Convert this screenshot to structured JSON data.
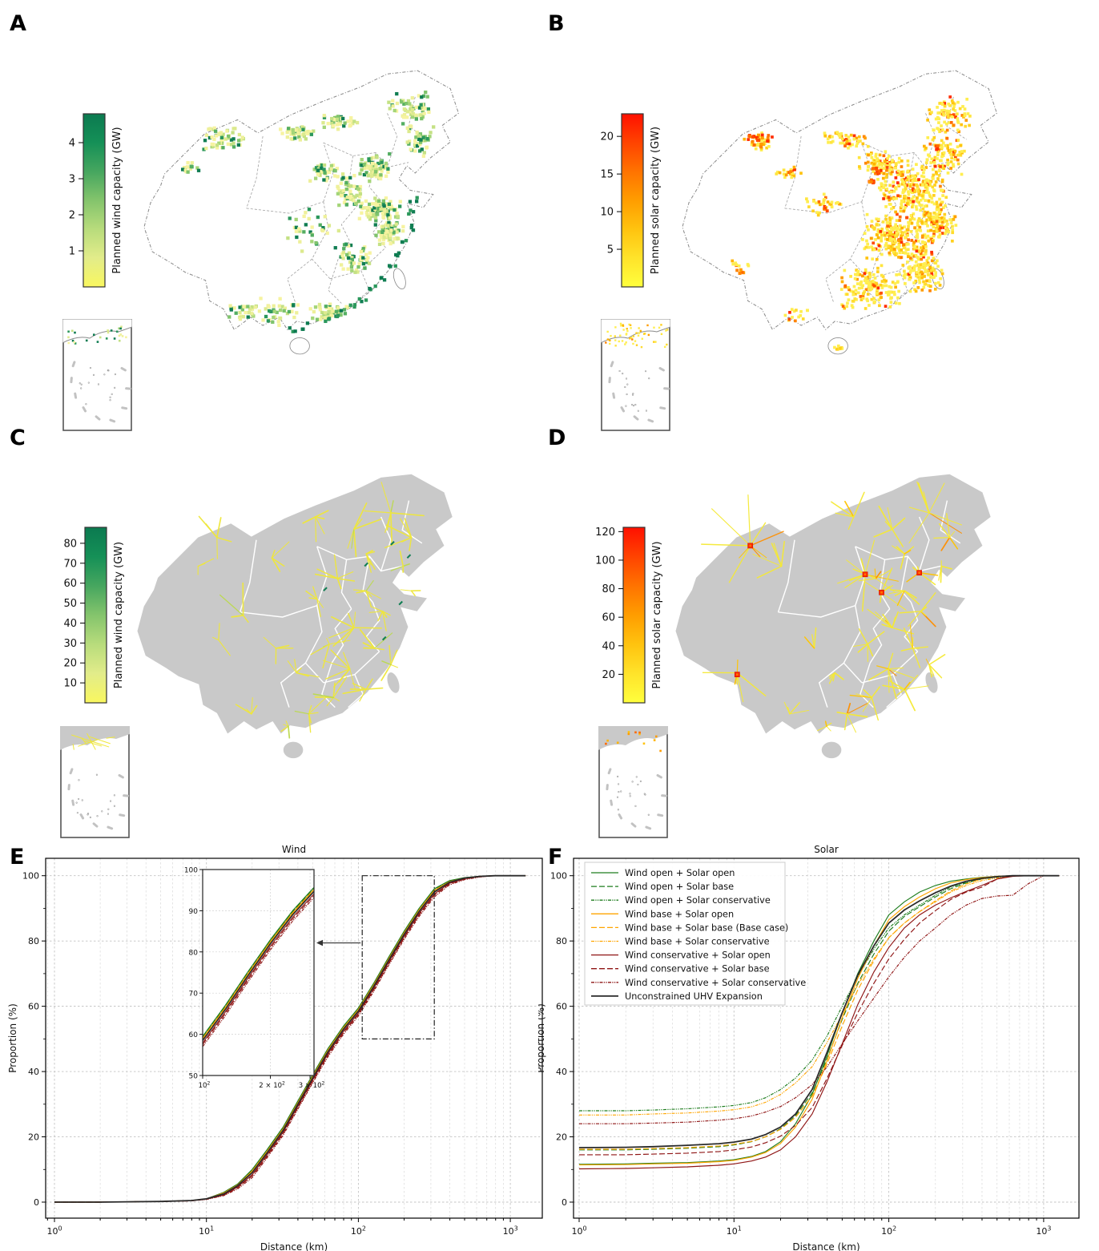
{
  "figure": {
    "panel_labels": [
      "A",
      "B",
      "C",
      "D",
      "E",
      "F"
    ]
  },
  "colorbars": {
    "panel_a": {
      "label": "Planned wind capacity (GW)",
      "vmin": 0,
      "vmax": 4.8,
      "ticks": [
        1,
        2,
        3,
        4
      ],
      "gradient": [
        "#f9f75f",
        "#e2ec8a",
        "#b8dc7c",
        "#84c46c",
        "#46a65f",
        "#159057",
        "#0b7a50"
      ]
    },
    "panel_b": {
      "label": "Planned solar capacity (GW)",
      "vmin": 0,
      "vmax": 23,
      "ticks": [
        5,
        10,
        15,
        20
      ],
      "gradient": [
        "#ffff3d",
        "#ffe32a",
        "#ffc30f",
        "#ff9d00",
        "#ff7300",
        "#ff4300",
        "#ff1000"
      ]
    },
    "panel_c": {
      "label": "Planned wind capacity (GW)",
      "vmin": 0,
      "vmax": 88,
      "ticks": [
        10,
        20,
        30,
        40,
        50,
        60,
        70,
        80
      ],
      "gradient": [
        "#f9f75f",
        "#e2ec8a",
        "#b8dc7c",
        "#84c46c",
        "#46a65f",
        "#159057",
        "#0b7a50"
      ]
    },
    "panel_d": {
      "label": "Planned solar capacity (GW)",
      "vmin": 0,
      "vmax": 123,
      "ticks": [
        20,
        40,
        60,
        80,
        100,
        120
      ],
      "gradient": [
        "#ffff3d",
        "#ffe32a",
        "#ffc30f",
        "#ff9d00",
        "#ff7300",
        "#ff4300",
        "#ff1000"
      ]
    }
  },
  "chart_data": [
    {
      "id": "map_A",
      "type": "map",
      "panel": "A",
      "content": "Gridded planned wind capacity across China; dense dark-green cells along east/southeast coast, clusters in N Xinjiang, Inner Mongolia, North China Plain; South China Sea inset",
      "colorbar": "panel_a"
    },
    {
      "id": "map_B",
      "type": "map",
      "panel": "B",
      "content": "Gridded planned solar capacity across China; dense yellow cells over eastern China, orange/red hotspots in N Xinjiang, Gansu-Ningxia and Tibet; South China Sea inset",
      "colorbar": "panel_b"
    },
    {
      "id": "map_C",
      "type": "map",
      "panel": "C",
      "content": "Planned wind capacity connected by UHV expansion: gray China map with yellow radiating transmission fans and small green hubs; South China Sea inset",
      "colorbar": "panel_c"
    },
    {
      "id": "map_D",
      "type": "map",
      "panel": "D",
      "content": "Planned solar capacity connected by UHV expansion: gray China map with yellow/orange radiating fans and red hub squares in Xinjiang, Qinghai, Ningxia, Tibet; South China Sea inset",
      "colorbar": "panel_d"
    },
    {
      "id": "wind_cdf",
      "type": "line",
      "title": "Wind",
      "xlabel": "Distance (km)",
      "ylabel": "Proportion (%)",
      "xscale": "log",
      "xlim": [
        0.9,
        1650
      ],
      "ylim": [
        -4,
        105
      ],
      "yticks": [
        0,
        20,
        40,
        60,
        80,
        100
      ],
      "xticks": [
        {
          "c": 1,
          "e": "0"
        },
        {
          "c": 1,
          "e": "1"
        },
        {
          "c": 1,
          "e": "2"
        },
        {
          "c": 1,
          "e": "3"
        }
      ],
      "grid": true,
      "legend": false,
      "x": [
        1,
        2,
        3,
        5,
        8,
        10,
        13,
        16,
        20,
        25,
        32,
        40,
        50,
        63,
        80,
        100,
        126,
        158,
        200,
        251,
        316,
        398,
        501,
        631,
        794,
        1000,
        1259
      ],
      "series": [
        {
          "name": "Wind open + Solar open",
          "color": "#1e7d1e",
          "dash": "solid",
          "values": [
            0,
            0,
            0.1,
            0.2,
            0.5,
            1,
            3,
            5.5,
            10,
            16,
            23,
            31,
            39,
            47,
            54,
            59.5,
            67,
            75,
            83,
            90,
            96,
            98.5,
            99.4,
            99.8,
            100,
            100,
            100
          ]
        },
        {
          "name": "Wind open + Solar base",
          "color": "#1e7d1e",
          "dash": "dashed",
          "values": [
            0,
            0,
            0.1,
            0.2,
            0.5,
            1,
            2.9,
            5.4,
            9.8,
            15.8,
            22.8,
            30.8,
            38.8,
            46.8,
            53.8,
            59.3,
            66.8,
            74.8,
            82.8,
            89.8,
            95.8,
            98.4,
            99.4,
            99.8,
            100,
            100,
            100
          ]
        },
        {
          "name": "Wind open + Solar conservative",
          "color": "#1e7d1e",
          "dash": "dashdot",
          "values": [
            0,
            0,
            0.1,
            0.2,
            0.5,
            1,
            2.8,
            5.3,
            9.6,
            15.6,
            22.6,
            30.6,
            38.6,
            46.6,
            53.6,
            59.1,
            66.6,
            74.6,
            82.6,
            89.6,
            95.6,
            98.3,
            99.3,
            99.8,
            100,
            100,
            100
          ]
        },
        {
          "name": "Wind base + Solar open",
          "color": "#ffa500",
          "dash": "solid",
          "values": [
            0,
            0,
            0.1,
            0.2,
            0.5,
            1,
            2.8,
            5.2,
            9.5,
            15.5,
            22.5,
            30.5,
            38.5,
            46.5,
            53.5,
            59,
            66.5,
            74.5,
            82.5,
            89.5,
            95.5,
            98.2,
            99.3,
            99.8,
            100,
            100,
            100
          ]
        },
        {
          "name": "Wind base + Solar base (Base case)",
          "color": "#ffa500",
          "dash": "dashed",
          "values": [
            0,
            0,
            0.1,
            0.2,
            0.5,
            1,
            2.7,
            5.2,
            9.3,
            15.3,
            22.3,
            30.3,
            38.3,
            46.3,
            53.3,
            58.8,
            66.3,
            74.3,
            82.3,
            89.3,
            95.3,
            98.1,
            99.3,
            99.8,
            100,
            100,
            100
          ]
        },
        {
          "name": "Wind base + Solar conservative",
          "color": "#ffa500",
          "dash": "dashdot",
          "values": [
            0,
            0,
            0.1,
            0.2,
            0.5,
            1,
            2.5,
            5,
            9.1,
            15.1,
            22.1,
            30.1,
            38.1,
            46.1,
            53.1,
            58.6,
            66.1,
            74.1,
            82.1,
            89.1,
            95.1,
            98,
            99.3,
            99.8,
            100,
            100,
            100
          ]
        },
        {
          "name": "Wind conservative + Solar open",
          "color": "#8f1515",
          "dash": "solid",
          "values": [
            0,
            0,
            0.1,
            0.2,
            0.5,
            0.9,
            2.2,
            4.6,
            8.4,
            14.4,
            21.4,
            29.4,
            37.4,
            45.4,
            52.4,
            57.9,
            65.4,
            73.4,
            81.4,
            88.4,
            94.4,
            97.7,
            99.1,
            99.7,
            100,
            100,
            100
          ]
        },
        {
          "name": "Wind conservative + Solar base",
          "color": "#8f1515",
          "dash": "dashed",
          "values": [
            0,
            0,
            0.1,
            0.2,
            0.4,
            0.9,
            2.1,
            4.4,
            8,
            14,
            21,
            29,
            37,
            45,
            52,
            57.5,
            65,
            73,
            81,
            88,
            94,
            97.5,
            99,
            99.7,
            100,
            100,
            100
          ]
        },
        {
          "name": "Wind conservative + Solar conservative",
          "color": "#8f1515",
          "dash": "dashdot",
          "values": [
            0,
            0,
            0.1,
            0.2,
            0.4,
            0.8,
            2,
            4,
            7.5,
            13.5,
            20.5,
            28.5,
            36.5,
            44.5,
            51.5,
            57,
            64.5,
            72.5,
            80.5,
            87.5,
            93.5,
            97.2,
            98.8,
            99.6,
            100,
            100,
            100
          ]
        },
        {
          "name": "Unconstrained UHV Expansion",
          "color": "#2b2b2b",
          "dash": "solid",
          "values": [
            0,
            0,
            0.1,
            0.2,
            0.5,
            1,
            2.5,
            5,
            9,
            15,
            22,
            30,
            38,
            46,
            53,
            58.5,
            66,
            74,
            82,
            89,
            95,
            98,
            99.3,
            99.8,
            100,
            100,
            100
          ]
        }
      ],
      "inset": {
        "xlim": [
          100,
          320
        ],
        "ylim": [
          50,
          100
        ],
        "xticks": [
          {
            "c": 1,
            "e": "2"
          },
          {
            "c": 2,
            "e": "2"
          },
          {
            "c": 3,
            "e": "2"
          }
        ],
        "yticks": [
          50,
          60,
          70,
          80,
          90,
          100
        ],
        "zoom_rect_x": [
          106,
          316
        ],
        "zoom_rect_y": [
          50,
          100
        ]
      }
    },
    {
      "id": "solar_cdf",
      "type": "line",
      "title": "Solar",
      "xlabel": "Distance (km)",
      "ylabel": "Proportion (%)",
      "xscale": "log",
      "xlim": [
        0.9,
        1700
      ],
      "ylim": [
        -4,
        105
      ],
      "yticks": [
        0,
        20,
        40,
        60,
        80,
        100
      ],
      "xticks": [
        {
          "c": 1,
          "e": "0"
        },
        {
          "c": 1,
          "e": "1"
        },
        {
          "c": 1,
          "e": "2"
        },
        {
          "c": 1,
          "e": "3"
        }
      ],
      "grid": true,
      "legend": true,
      "legend_position": "upper left",
      "x": [
        1,
        2,
        3,
        5,
        8,
        10,
        13,
        16,
        20,
        25,
        32,
        40,
        50,
        63,
        80,
        100,
        126,
        158,
        200,
        251,
        316,
        398,
        501,
        631,
        794,
        1000,
        1259
      ],
      "series": [
        {
          "name": "Wind open + Solar open",
          "color": "#1e7d1e",
          "dash": "solid",
          "values": [
            11.6,
            11.7,
            11.9,
            12.1,
            12.6,
            13,
            14,
            15.5,
            18.5,
            24,
            33,
            45,
            58,
            70,
            80,
            88,
            92,
            95,
            97,
            98.3,
            99,
            99.5,
            99.8,
            100,
            100,
            100,
            100
          ]
        },
        {
          "name": "Wind open + Solar base",
          "color": "#1e7d1e",
          "dash": "dashed",
          "values": [
            16,
            16,
            16.2,
            16.5,
            17,
            17.5,
            18.5,
            20,
            22.5,
            26.5,
            33.5,
            44,
            56,
            67,
            76,
            83,
            87.5,
            90.5,
            93.5,
            96,
            97.8,
            99,
            99.7,
            100,
            100,
            100,
            100
          ]
        },
        {
          "name": "Wind open + Solar conservative",
          "color": "#1e7d1e",
          "dash": "dashdot",
          "values": [
            28,
            28,
            28.2,
            28.6,
            29.2,
            29.6,
            30.5,
            32,
            34.5,
            38,
            43.5,
            51,
            60,
            69,
            77.5,
            84,
            88,
            91,
            94,
            96.5,
            98,
            99,
            99.5,
            100,
            100,
            100,
            100
          ]
        },
        {
          "name": "Wind base + Solar open",
          "color": "#ffa500",
          "dash": "solid",
          "values": [
            11.4,
            11.5,
            11.7,
            11.9,
            12.4,
            12.8,
            13.8,
            15.2,
            18,
            23,
            31.5,
            43.5,
            56.5,
            68.5,
            78.5,
            86.5,
            90.5,
            93.5,
            96,
            97.8,
            98.8,
            99.4,
            99.8,
            100,
            100,
            100,
            100
          ]
        },
        {
          "name": "Wind base + Solar base (Base case)",
          "color": "#ffa500",
          "dash": "dashed",
          "values": [
            16.2,
            16.2,
            16.4,
            16.7,
            17.2,
            17.7,
            18.6,
            20,
            22.3,
            26,
            32.5,
            42.5,
            54,
            65,
            74,
            81,
            85.5,
            89,
            92.3,
            95.3,
            97.5,
            99,
            99.7,
            100,
            100,
            100,
            100
          ]
        },
        {
          "name": "Wind base + Solar conservative",
          "color": "#ffa500",
          "dash": "dashdot",
          "values": [
            26.7,
            26.7,
            27,
            27.3,
            27.9,
            28.3,
            29.2,
            30.6,
            33,
            36.5,
            41.5,
            49,
            57.5,
            66.5,
            74.5,
            81,
            85.5,
            89,
            92,
            95,
            97,
            98.5,
            99.3,
            100,
            100,
            100,
            100
          ]
        },
        {
          "name": "Wind conservative + Solar open",
          "color": "#8f1515",
          "dash": "solid",
          "values": [
            10.2,
            10.3,
            10.5,
            10.8,
            11.3,
            11.7,
            12.6,
            13.8,
            16,
            20,
            27,
            37,
            48.5,
            60.5,
            70.5,
            78,
            84,
            88,
            91,
            93.2,
            95.2,
            97,
            99,
            99.8,
            100,
            100,
            100
          ]
        },
        {
          "name": "Wind conservative + Solar base",
          "color": "#8f1515",
          "dash": "dashed",
          "values": [
            14.5,
            14.5,
            14.7,
            15,
            15.5,
            16,
            16.9,
            18.2,
            20.2,
            23.5,
            29,
            38,
            48,
            58,
            67,
            74.5,
            80.5,
            85.5,
            89.3,
            92.7,
            95,
            96.5,
            99,
            100,
            100,
            100,
            100
          ]
        },
        {
          "name": "Wind conservative + Solar conservative",
          "color": "#8f1515",
          "dash": "dashdot",
          "values": [
            24,
            24,
            24.2,
            24.5,
            25.1,
            25.5,
            26.4,
            27.6,
            29.3,
            32,
            36,
            41.5,
            48.5,
            55.5,
            62.5,
            69,
            75,
            80,
            84,
            88,
            91,
            93,
            93.8,
            94,
            97.5,
            100,
            100
          ]
        },
        {
          "name": "Unconstrained UHV Expansion",
          "color": "#2b2b2b",
          "dash": "solid",
          "values": [
            16.7,
            16.8,
            17,
            17.4,
            17.9,
            18.4,
            19.3,
            20.7,
            23,
            27,
            34.5,
            46,
            58,
            69.5,
            78.5,
            85.5,
            89.5,
            92.3,
            94.8,
            96.8,
            98.3,
            99.2,
            99.7,
            100,
            100,
            100,
            100
          ]
        }
      ]
    }
  ]
}
